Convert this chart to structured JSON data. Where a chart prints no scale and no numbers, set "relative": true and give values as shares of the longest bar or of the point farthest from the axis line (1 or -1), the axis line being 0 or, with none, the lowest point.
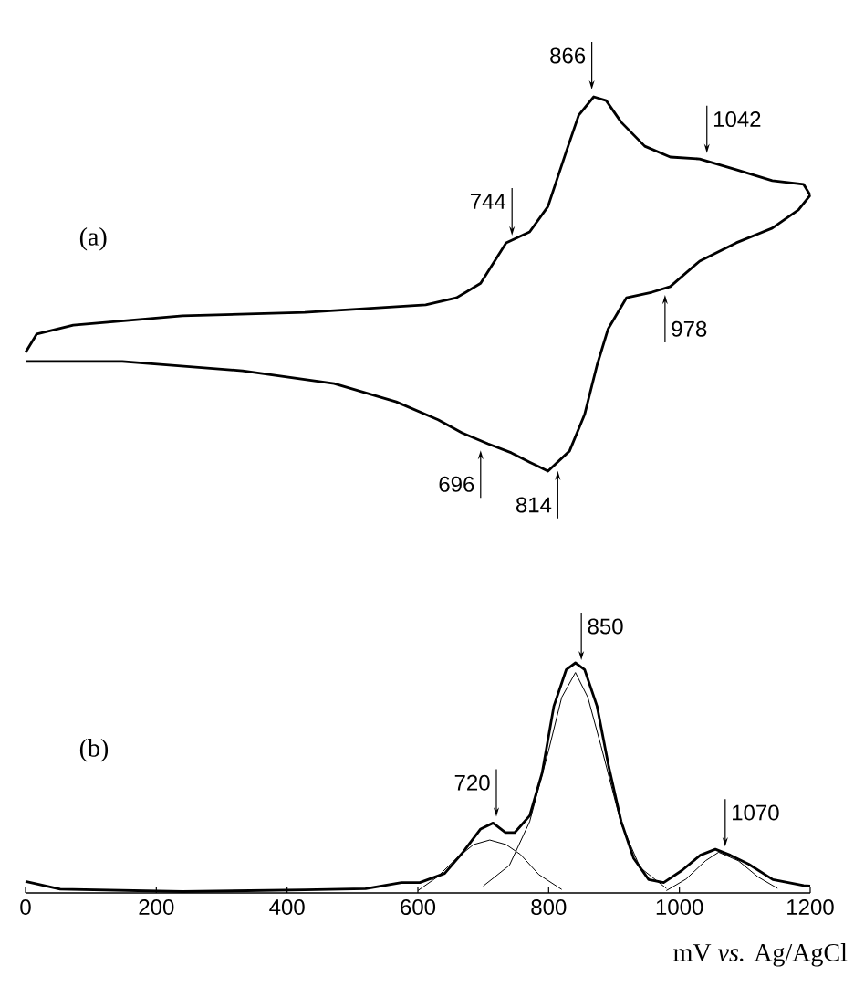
{
  "chart_data": [
    {
      "type": "line",
      "title": "(a)",
      "relative": true,
      "xlim": [
        0,
        1200
      ],
      "tick_labels": false,
      "series": [
        {
          "color": "#000000",
          "x": [
            0,
            17,
            73,
            240,
            427,
            612,
            659,
            696,
            735,
            771,
            799,
            827,
            846,
            869,
            888,
            911,
            947,
            986,
            1031,
            1087,
            1142,
            1190,
            1200
          ],
          "values": [
            0.317,
            0.366,
            0.39,
            0.415,
            0.424,
            0.444,
            0.463,
            0.502,
            0.61,
            0.639,
            0.707,
            0.854,
            0.951,
            1,
            0.99,
            0.932,
            0.868,
            0.839,
            0.834,
            0.805,
            0.776,
            0.766,
            0.737
          ]
        },
        {
          "color": "#000000",
          "x": [
            1200,
            1182,
            1142,
            1087,
            1031,
            986,
            958,
            919,
            891,
            874,
            855,
            832,
            799,
            771,
            743,
            707,
            668,
            631,
            567,
            472,
            332,
            148,
            0
          ],
          "values": [
            0.737,
            0.698,
            0.649,
            0.61,
            0.561,
            0.493,
            0.478,
            0.463,
            0.38,
            0.283,
            0.151,
            0.054,
            0,
            0.024,
            0.049,
            0.073,
            0.102,
            0.137,
            0.185,
            0.234,
            0.268,
            0.293,
            0.293
          ]
        }
      ],
      "annotations": [
        {
          "text": "866",
          "x": 866,
          "y": 1
        },
        {
          "text": "1042",
          "x": 1042,
          "y": 0.83
        },
        {
          "text": "744",
          "x": 744,
          "y": 0.61
        },
        {
          "text": "696",
          "x": 696,
          "y": 0.075
        },
        {
          "text": "814",
          "x": 814,
          "y": 0.02
        },
        {
          "text": "978",
          "x": 978,
          "y": 0.49
        }
      ]
    },
    {
      "type": "line",
      "title": "(b)",
      "relative": true,
      "xlim": [
        0,
        1200
      ],
      "xticks": [
        0,
        200,
        400,
        600,
        800,
        1000,
        1200
      ],
      "xlabel": "mV *vs.* Ag/AgCl",
      "tick_labels": "x",
      "series": [
        {
          "color": "#000000",
          "x": [
            0,
            53,
            240,
            427,
            520,
            575,
            603,
            641,
            669,
            696,
            715,
            734,
            748,
            771,
            790,
            808,
            827,
            841,
            855,
            874,
            892,
            911,
            930,
            953,
            976,
            1004,
            1032,
            1055,
            1078,
            1106,
            1143,
            1190,
            1200
          ],
          "values": [
            0.05,
            0.016,
            0.006,
            0.013,
            0.018,
            0.045,
            0.045,
            0.085,
            0.177,
            0.278,
            0.304,
            0.262,
            0.262,
            0.336,
            0.521,
            0.812,
            0.971,
            1,
            0.971,
            0.812,
            0.548,
            0.31,
            0.151,
            0.058,
            0.045,
            0.098,
            0.164,
            0.19,
            0.164,
            0.125,
            0.058,
            0.032,
            0.03
          ]
        },
        {
          "color": "#000000",
          "x": [
            600,
            630,
            659,
            685,
            710,
            735,
            757,
            785,
            820
          ],
          "values": [
            0.01,
            0.07,
            0.15,
            0.21,
            0.23,
            0.21,
            0.167,
            0.08,
            0.015
          ]
        },
        {
          "color": "#000000",
          "x": [
            700,
            740,
            771,
            800,
            820,
            841,
            860,
            880,
            911,
            940,
            980
          ],
          "values": [
            0.03,
            0.12,
            0.31,
            0.62,
            0.85,
            0.958,
            0.85,
            0.64,
            0.3,
            0.11,
            0.02
          ]
        },
        {
          "color": "#000000",
          "x": [
            980,
            1010,
            1040,
            1060,
            1090,
            1120,
            1150
          ],
          "values": [
            0.01,
            0.06,
            0.14,
            0.177,
            0.14,
            0.07,
            0.02
          ]
        }
      ],
      "annotations": [
        {
          "text": "720",
          "x": 720,
          "y": 0.3
        },
        {
          "text": "850",
          "x": 850,
          "y": 0.98
        },
        {
          "text": "1070",
          "x": 1070,
          "y": 0.17
        }
      ]
    }
  ]
}
